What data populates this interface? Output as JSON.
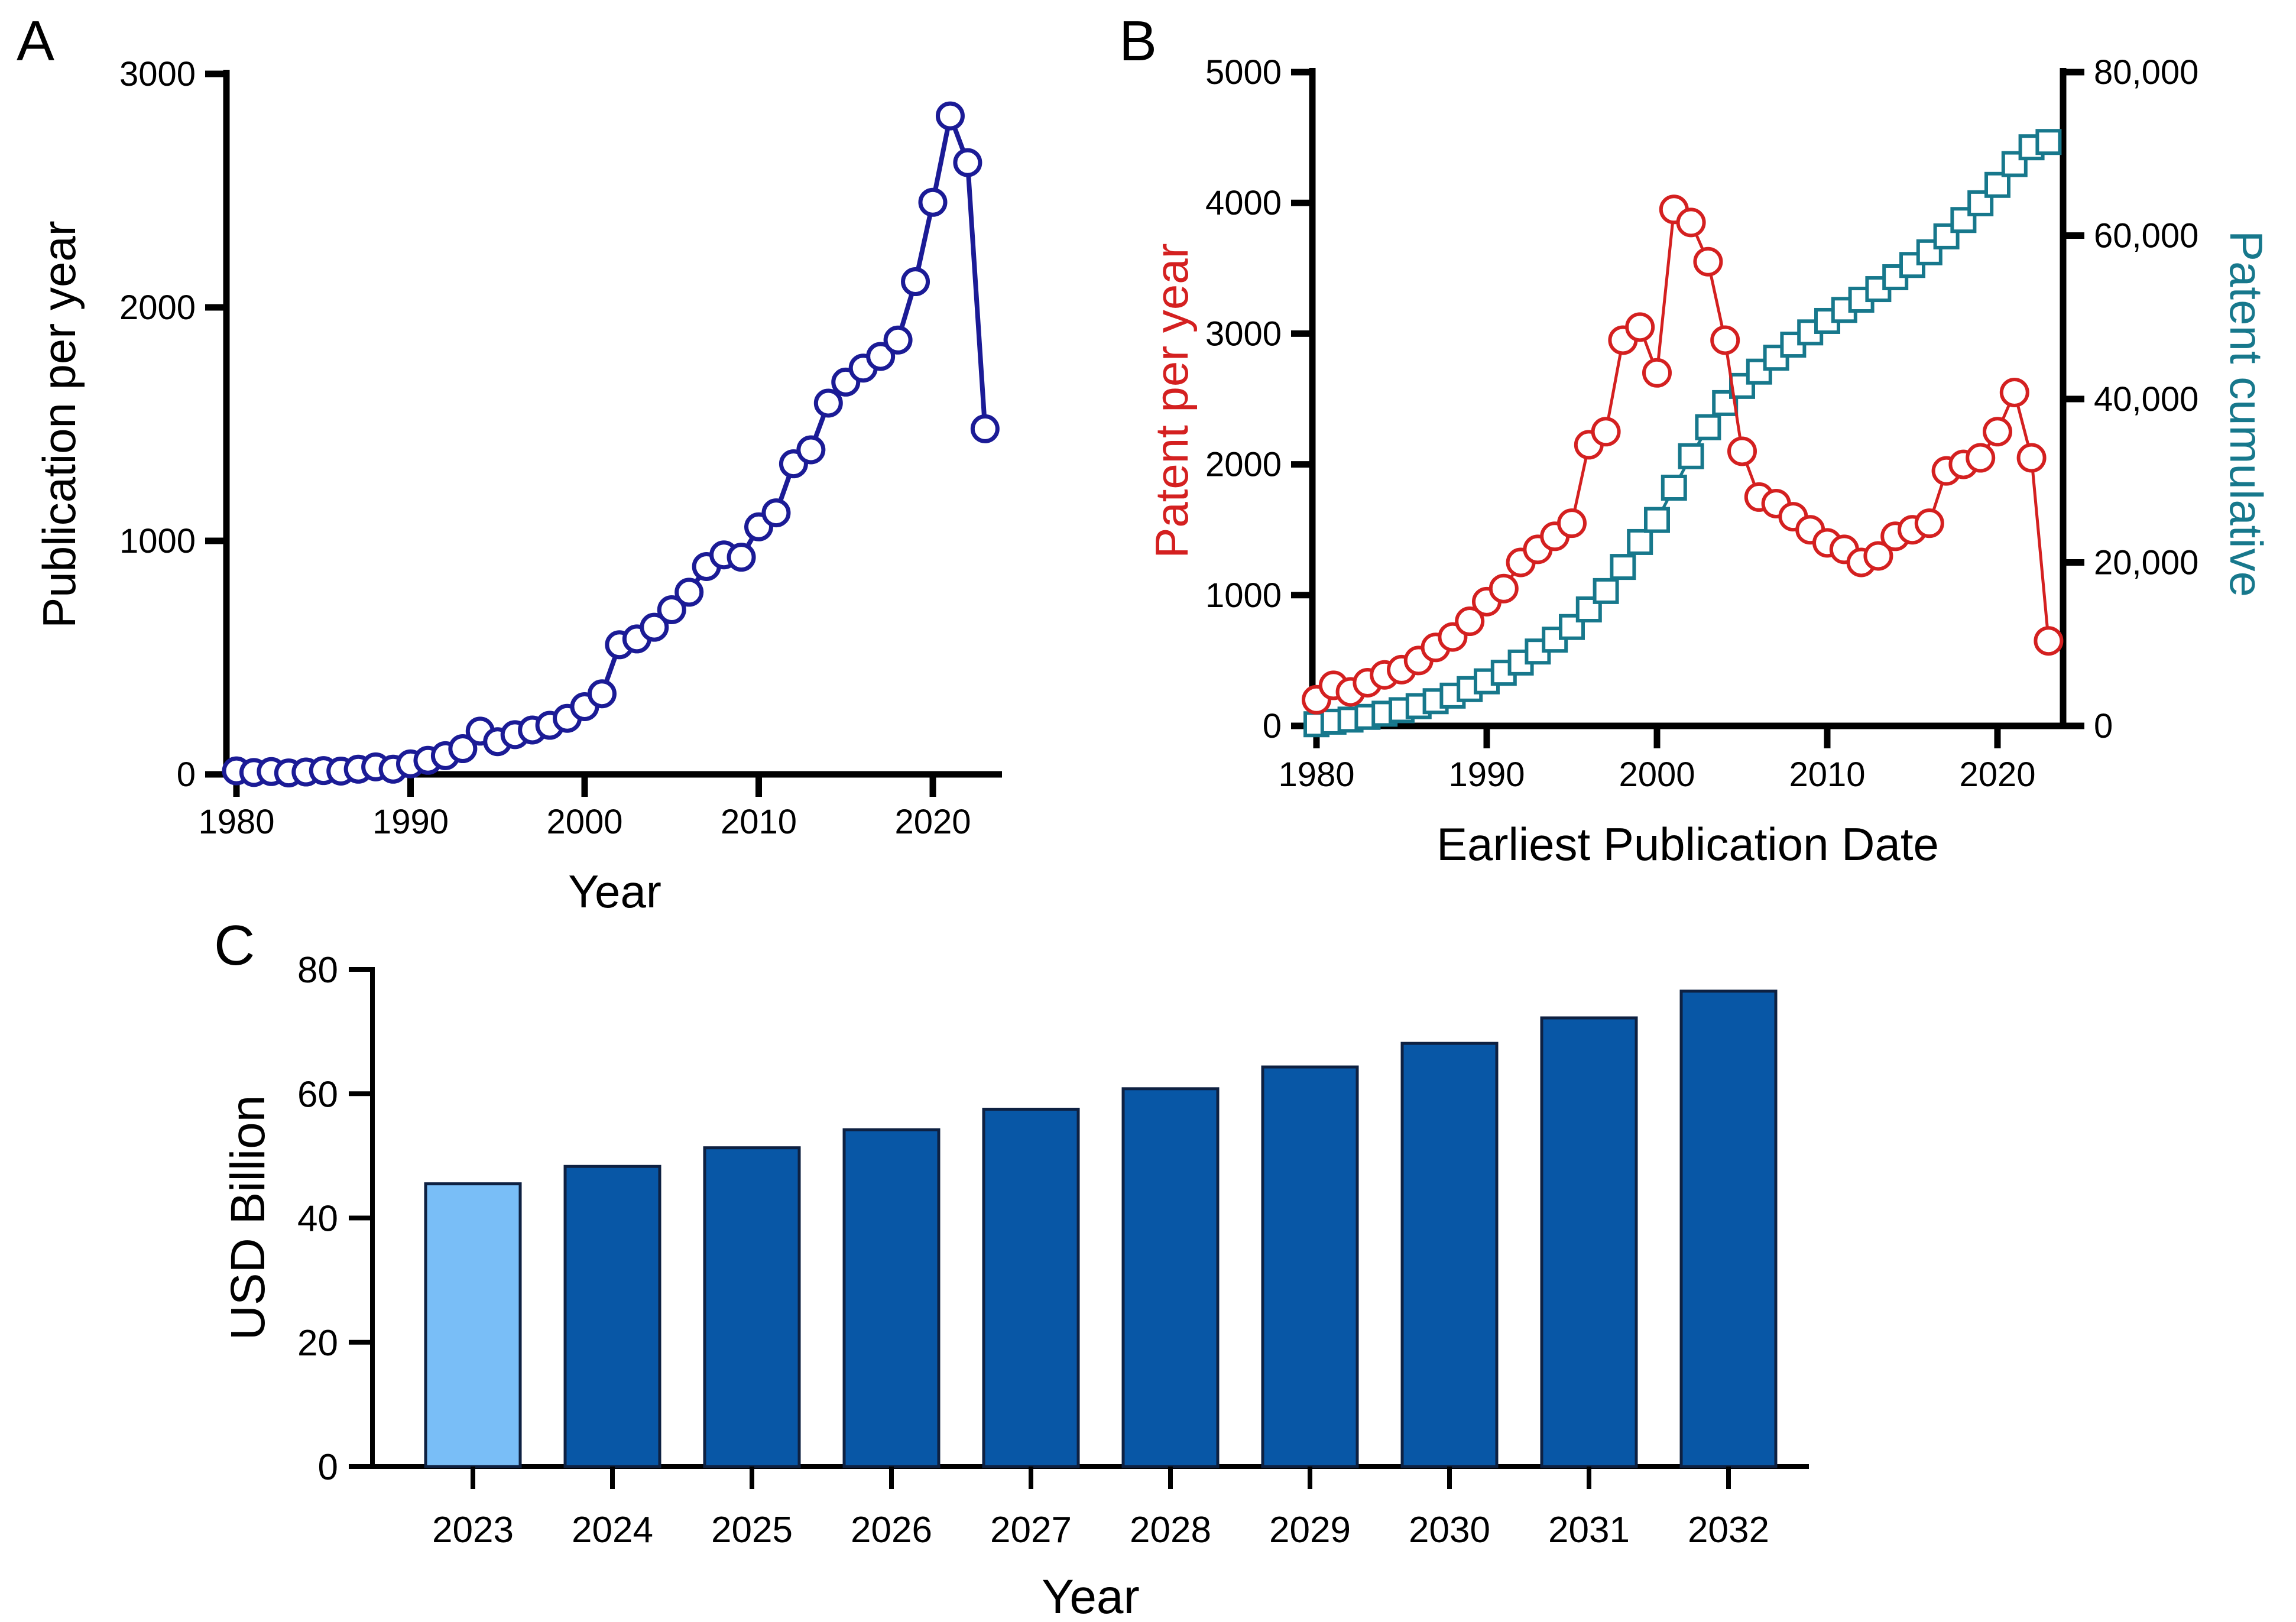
{
  "figure": {
    "panels": [
      {
        "id": "A",
        "letter": "A"
      },
      {
        "id": "B",
        "letter": "B"
      },
      {
        "id": "C",
        "letter": "C"
      }
    ]
  },
  "colors": {
    "publication_line": "#1b1b96",
    "patent_per_year": "#d42020",
    "patent_cumulative": "#17788c",
    "bar_highlight": "#79bef7",
    "bar_default": "#0857a6",
    "bar_outline": "#0e2142",
    "axis": "#000000",
    "marker_fill": "#ffffff"
  },
  "chart_data": [
    {
      "panel": "A",
      "type": "line",
      "xlabel": "Year",
      "ylabel": "Publication per year",
      "xlim": [
        1979,
        2025
      ],
      "ylim": [
        0,
        3000
      ],
      "xticks": [
        1980,
        1990,
        2000,
        2010,
        2020
      ],
      "yticks": [
        0,
        1000,
        2000,
        3000
      ],
      "grid": false,
      "legend": "none",
      "x": [
        1980,
        1981,
        1982,
        1983,
        1984,
        1985,
        1986,
        1987,
        1988,
        1989,
        1990,
        1991,
        1992,
        1993,
        1994,
        1995,
        1996,
        1997,
        1998,
        1999,
        2000,
        2001,
        2002,
        2003,
        2004,
        2005,
        2006,
        2007,
        2008,
        2009,
        2010,
        2011,
        2012,
        2013,
        2014,
        2015,
        2016,
        2017,
        2018,
        2019,
        2020,
        2021,
        2022,
        2023
      ],
      "series": [
        {
          "name": "Publication per year",
          "marker": "circle",
          "color": "#1b1b96",
          "values": [
            15,
            8,
            12,
            6,
            10,
            16,
            14,
            22,
            32,
            22,
            45,
            60,
            80,
            110,
            185,
            140,
            170,
            190,
            210,
            240,
            290,
            345,
            555,
            580,
            630,
            705,
            780,
            890,
            940,
            930,
            1060,
            1120,
            1330,
            1390,
            1590,
            1680,
            1740,
            1790,
            1860,
            2110,
            2450,
            2820,
            2620,
            1480
          ]
        }
      ]
    },
    {
      "panel": "B",
      "type": "line",
      "xlabel": "Earliest Publication Date",
      "ylabel_left": "Patent per year",
      "ylabel_right": "Patent cumulative",
      "xlim": [
        1979,
        2025
      ],
      "ylim_left": [
        0,
        5000
      ],
      "ylim_right": [
        0,
        80000
      ],
      "xticks": [
        1980,
        1990,
        2000,
        2010,
        2020
      ],
      "yticks_left": [
        0,
        1000,
        2000,
        3000,
        4000,
        5000
      ],
      "yticks_right": [
        0,
        20000,
        40000,
        60000,
        80000
      ],
      "yticks_right_labels": [
        "0",
        "20,000",
        "40,000",
        "60,000",
        "80,000"
      ],
      "grid": false,
      "legend": "none",
      "x": [
        1980,
        1981,
        1982,
        1983,
        1984,
        1985,
        1986,
        1987,
        1988,
        1989,
        1990,
        1991,
        1992,
        1993,
        1994,
        1995,
        1996,
        1997,
        1998,
        1999,
        2000,
        2001,
        2002,
        2003,
        2004,
        2005,
        2006,
        2007,
        2008,
        2009,
        2010,
        2011,
        2012,
        2013,
        2014,
        2015,
        2016,
        2017,
        2018,
        2019,
        2020,
        2021,
        2022,
        2023
      ],
      "series": [
        {
          "name": "Patent cumulative",
          "axis": "right",
          "marker": "square",
          "color": "#17788c",
          "values": [
            200,
            510,
            770,
            1100,
            1490,
            1920,
            2420,
            3020,
            3700,
            4500,
            5450,
            6500,
            7750,
            9100,
            10550,
            12100,
            14250,
            16500,
            19450,
            22500,
            25200,
            29150,
            33000,
            36550,
            39500,
            41600,
            43350,
            45050,
            46650,
            48150,
            49550,
            50900,
            52150,
            53450,
            54900,
            56400,
            57950,
            59900,
            61900,
            63950,
            66200,
            68750,
            70800,
            71450
          ]
        },
        {
          "name": "Patent per year",
          "axis": "left",
          "marker": "circle",
          "color": "#d42020",
          "values": [
            200,
            310,
            260,
            330,
            390,
            430,
            500,
            600,
            680,
            800,
            950,
            1050,
            1250,
            1350,
            1450,
            1550,
            2150,
            2250,
            2950,
            3050,
            2700,
            3950,
            3850,
            3550,
            2950,
            2100,
            1750,
            1700,
            1600,
            1500,
            1400,
            1350,
            1250,
            1300,
            1450,
            1500,
            1550,
            1950,
            2000,
            2050,
            2250,
            2550,
            2050,
            650
          ]
        }
      ]
    },
    {
      "panel": "C",
      "type": "bar",
      "xlabel": "Year",
      "ylabel": "USD Billion",
      "ylim": [
        0,
        80
      ],
      "yticks": [
        0,
        20,
        40,
        60,
        80
      ],
      "grid": false,
      "legend": "none",
      "categories": [
        "2023",
        "2024",
        "2025",
        "2026",
        "2027",
        "2028",
        "2029",
        "2030",
        "2031",
        "2032"
      ],
      "values": [
        45.5,
        48.3,
        51.3,
        54.2,
        57.5,
        60.8,
        64.3,
        68.1,
        72.2,
        76.5
      ],
      "highlight_index": 0
    }
  ]
}
